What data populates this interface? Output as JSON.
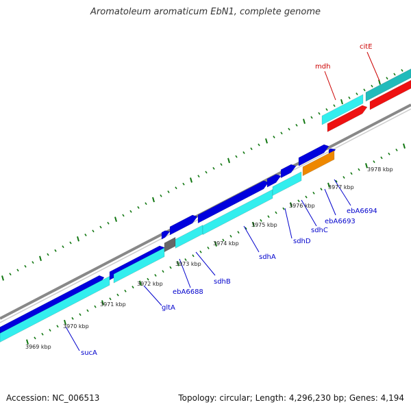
{
  "title": "Aromatoleum aromaticum EbN1, complete genome",
  "footer": {
    "accession": "Accession: NC_006513",
    "stats": "Topology: circular; Length: 4,296,230 bp; Genes: 4,194"
  },
  "colors": {
    "forward_cds": "#0000dd",
    "reverse_cds": "#33eeee",
    "forward_red": "#ee1111",
    "highlight_cds": "#ee8800",
    "grey_feature": "#666666",
    "backbone": "#888888",
    "ticks": "#117711",
    "gene_label": "#0000cc",
    "gene_label_red": "#cc0000"
  },
  "kbp_labels": [
    "3969 kbp",
    "3970 kbp",
    "3971 kbp",
    "3972 kbp",
    "3973 kbp",
    "3974 kbp",
    "3975 kbp",
    "3976 kbp",
    "3977 kbp",
    "3978 kbp"
  ],
  "gene_labels": [
    {
      "text": "sucA",
      "color": "blue"
    },
    {
      "text": "gltA",
      "color": "blue"
    },
    {
      "text": "ebA6688",
      "color": "blue"
    },
    {
      "text": "sdhB",
      "color": "blue"
    },
    {
      "text": "sdhA",
      "color": "blue"
    },
    {
      "text": "sdhD",
      "color": "blue"
    },
    {
      "text": "sdhC",
      "color": "blue"
    },
    {
      "text": "ebA6693",
      "color": "blue"
    },
    {
      "text": "ebA6694",
      "color": "blue"
    },
    {
      "text": "mdh",
      "color": "red"
    },
    {
      "text": "citE",
      "color": "red"
    }
  ]
}
